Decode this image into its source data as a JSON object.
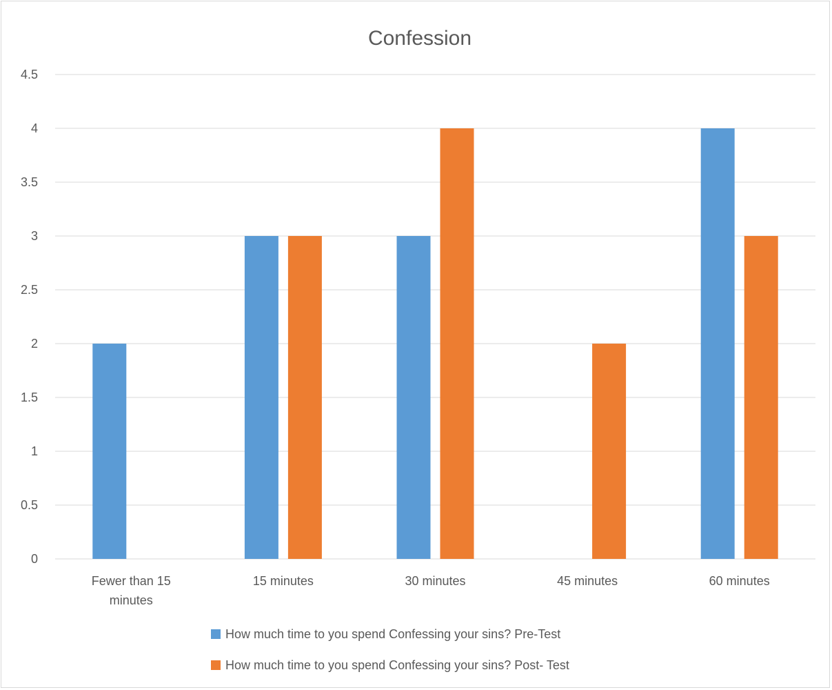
{
  "chart_data": {
    "type": "bar",
    "title": "Confession",
    "xlabel": "",
    "ylabel": "",
    "ylim": [
      0,
      4.5
    ],
    "yticks": [
      "0",
      "0.5",
      "1",
      "1.5",
      "2",
      "2.5",
      "3",
      "3.5",
      "4",
      "4.5"
    ],
    "categories": [
      [
        "Fewer than 15",
        "minutes"
      ],
      [
        "15 minutes"
      ],
      [
        "30 minutes"
      ],
      [
        "45 minutes"
      ],
      [
        "60 minutes"
      ]
    ],
    "series": [
      {
        "name": "How much time to you spend Confessing your sins? Pre-Test",
        "color": "#5b9bd5",
        "values": [
          2,
          3,
          3,
          0,
          4
        ]
      },
      {
        "name": "How much time to you spend Confessing your sins? Post- Test",
        "color": "#ed7d31",
        "values": [
          0,
          3,
          4,
          2,
          3
        ]
      }
    ],
    "grid": true,
    "legend": "bottom"
  }
}
